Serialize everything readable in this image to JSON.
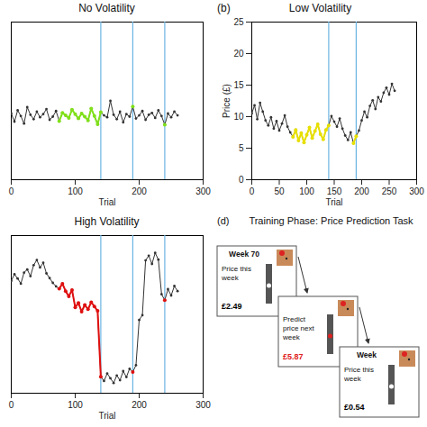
{
  "chart_data": [
    {
      "type": "line",
      "title": "No Volatility",
      "x": [
        0,
        5,
        10,
        15,
        20,
        25,
        30,
        35,
        40,
        45,
        50,
        55,
        60,
        65,
        70,
        75,
        80,
        85,
        90,
        95,
        100,
        105,
        110,
        115,
        120,
        125,
        130,
        135,
        140,
        145,
        150,
        155,
        160,
        165,
        170,
        175,
        180,
        185,
        190,
        195,
        200,
        205,
        210,
        215,
        220,
        225,
        230,
        235,
        240,
        245,
        250,
        255,
        260
      ],
      "series": [
        {
          "color": "#333333",
          "marker": "dot",
          "values": [
            10.5,
            9.2,
            11.0,
            10.1,
            8.9,
            11.5,
            10.3,
            9.6,
            10.8,
            9.9,
            10.4,
            11.2,
            9.5,
            10.0,
            10.9,
            9.3,
            10.6,
            10.2,
            9.8,
            11.1,
            10.4,
            9.7,
            10.5,
            10.0,
            9.4,
            11.3,
            10.1,
            8.8,
            10.7,
            10.2,
            9.9,
            12.5,
            10.3,
            9.6,
            10.8,
            9.1,
            10.4,
            10.0,
            11.6,
            9.7,
            10.2,
            10.9,
            9.5,
            10.3,
            10.6,
            9.8,
            11.0,
            10.1,
            8.7,
            10.5,
            9.9,
            10.8,
            10.2
          ]
        }
      ],
      "highlight": {
        "color": "#80e01a",
        "ranges": [
          [
            75,
            140
          ],
          [
            188,
            192
          ],
          [
            238,
            242
          ]
        ]
      },
      "vlines": [
        140,
        190,
        240
      ],
      "xlim": [
        0,
        300
      ],
      "ylim": [
        0,
        25
      ],
      "xticks": [
        0,
        100,
        200,
        300
      ],
      "xlabel": "Trial",
      "tick_labels": "x"
    },
    {
      "type": "line",
      "panel": "(b)",
      "title": "Low Volatility",
      "x": [
        0,
        5,
        10,
        15,
        20,
        25,
        30,
        35,
        40,
        45,
        50,
        55,
        60,
        65,
        70,
        75,
        80,
        85,
        90,
        95,
        100,
        105,
        110,
        115,
        120,
        125,
        130,
        135,
        140,
        145,
        150,
        155,
        160,
        165,
        170,
        175,
        180,
        185,
        190,
        195,
        200,
        205,
        210,
        215,
        220,
        225,
        230,
        235,
        240,
        245,
        250,
        255,
        260
      ],
      "series": [
        {
          "color": "#333333",
          "marker": "dot",
          "values": [
            10.5,
            11.8,
            9.6,
            12.2,
            10.8,
            9.4,
            8.6,
            9.9,
            8.1,
            9.3,
            7.8,
            8.9,
            10.2,
            8.4,
            7.5,
            6.8,
            7.9,
            6.2,
            7.4,
            5.9,
            7.1,
            8.3,
            6.6,
            7.7,
            8.8,
            7.2,
            6.4,
            7.9,
            8.6,
            10.1,
            9.2,
            8.4,
            9.7,
            8.1,
            7.0,
            6.3,
            7.5,
            5.8,
            6.9,
            7.8,
            9.4,
            10.8,
            9.9,
            11.7,
            12.6,
            11.2,
            13.1,
            12.4,
            13.8,
            14.6,
            13.5,
            15.2,
            14.1
          ]
        }
      ],
      "highlight": {
        "color": "#e8e000",
        "ranges": [
          [
            75,
            140
          ],
          [
            185,
            192
          ]
        ]
      },
      "vlines": [
        140,
        190
      ],
      "xlim": [
        0,
        300
      ],
      "ylim": [
        0,
        25
      ],
      "xticks": [
        0,
        50,
        100,
        150,
        200,
        250,
        300
      ],
      "yticks": [
        0,
        5,
        10,
        15,
        20,
        25
      ],
      "xlabel": "Trial",
      "ylabel": "Price (£)"
    },
    {
      "type": "line",
      "title": "High Volatility",
      "x": [
        0,
        5,
        10,
        15,
        20,
        25,
        30,
        35,
        40,
        45,
        50,
        55,
        60,
        65,
        70,
        75,
        80,
        85,
        90,
        95,
        100,
        105,
        110,
        115,
        120,
        125,
        130,
        135,
        140,
        145,
        150,
        155,
        160,
        165,
        170,
        175,
        180,
        185,
        190,
        195,
        200,
        205,
        210,
        215,
        220,
        225,
        230,
        235,
        240,
        245,
        250,
        255,
        260
      ],
      "series": [
        {
          "color": "#333333",
          "marker": "dot",
          "values": [
            28.5,
            30.2,
            29.1,
            27.8,
            30.6,
            31.4,
            29.7,
            32.5,
            33.8,
            31.9,
            33.1,
            30.4,
            29.2,
            28.0,
            27.1,
            26.5,
            27.8,
            25.9,
            24.6,
            26.2,
            21.8,
            22.9,
            20.7,
            22.4,
            21.3,
            23.1,
            22.0,
            20.9,
            4.2,
            3.1,
            5.0,
            3.8,
            2.6,
            4.5,
            3.3,
            5.6,
            4.1,
            6.2,
            5.4,
            7.1,
            18.6,
            19.8,
            33.7,
            34.9,
            32.8,
            35.6,
            33.9,
            25.1,
            23.6,
            26.4,
            24.8,
            27.2,
            25.9
          ]
        }
      ],
      "highlight": {
        "color": "#e01010",
        "ranges": [
          [
            75,
            140
          ],
          [
            188,
            192
          ],
          [
            238,
            242
          ]
        ]
      },
      "vlines": [
        140,
        190,
        240
      ],
      "xlim": [
        0,
        300
      ],
      "ylim": [
        0,
        40
      ],
      "xticks": [
        0,
        100,
        200,
        300
      ],
      "xlabel": "Trial",
      "tick_labels": "x"
    }
  ],
  "panel_d": {
    "panel": "(d)",
    "title": "Training Phase: Price Prediction Task",
    "screens": [
      {
        "header": "Week 70",
        "prompt": "Price this week",
        "price": "£2.49",
        "color": "#000000"
      },
      {
        "prompt": "Predict price next week",
        "price": "£5.87",
        "color": "#e02020"
      },
      {
        "header": "Week",
        "prompt": "Price this week",
        "price": "£0.54",
        "color": "#000000"
      }
    ]
  }
}
